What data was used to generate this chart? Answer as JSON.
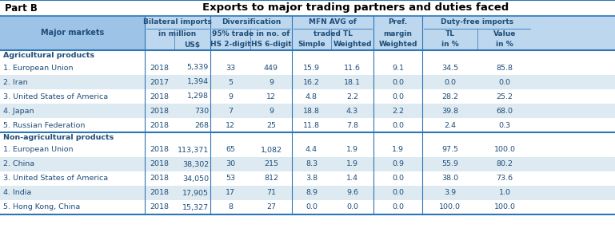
{
  "title": "Exports to major trading partners and duties faced",
  "part_label": "Part B",
  "hdr_light": "#BDD7EE",
  "hdr_medium": "#9DC3E6",
  "row_stripe": "#DEEAF1",
  "border_color": "#2E75B6",
  "text_color": "#1F4E79",
  "rows": [
    [
      "1. European Union",
      "2018",
      "5,339",
      "33",
      "449",
      "15.9",
      "11.6",
      "9.1",
      "34.5",
      "85.8"
    ],
    [
      "2. Iran",
      "2017",
      "1,394",
      "5",
      "9",
      "16.2",
      "18.1",
      "0.0",
      "0.0",
      "0.0"
    ],
    [
      "3. United States of America",
      "2018",
      "1,298",
      "9",
      "12",
      "4.8",
      "2.2",
      "0.0",
      "28.2",
      "25.2"
    ],
    [
      "4. Japan",
      "2018",
      "730",
      "7",
      "9",
      "18.8",
      "4.3",
      "2.2",
      "39.8",
      "68.0"
    ],
    [
      "5. Russian Federation",
      "2018",
      "268",
      "12",
      "25",
      "11.8",
      "7.8",
      "0.0",
      "2.4",
      "0.3"
    ],
    [
      "1. European Union",
      "2018",
      "113,371",
      "65",
      "1,082",
      "4.4",
      "1.9",
      "1.9",
      "97.5",
      "100.0"
    ],
    [
      "2. China",
      "2018",
      "38,302",
      "30",
      "215",
      "8.3",
      "1.9",
      "0.9",
      "55.9",
      "80.2"
    ],
    [
      "3. United States of America",
      "2018",
      "34,050",
      "53",
      "812",
      "3.8",
      "1.4",
      "0.0",
      "38.0",
      "73.6"
    ],
    [
      "4. India",
      "2018",
      "17,905",
      "17",
      "71",
      "8.9",
      "9.6",
      "0.0",
      "3.9",
      "1.0"
    ],
    [
      "5. Hong Kong, China",
      "2018",
      "15,327",
      "8",
      "27",
      "0.0",
      "0.0",
      "0.0",
      "100.0",
      "100.0"
    ]
  ],
  "fig_width": 7.69,
  "fig_height": 2.91,
  "dpi": 100
}
